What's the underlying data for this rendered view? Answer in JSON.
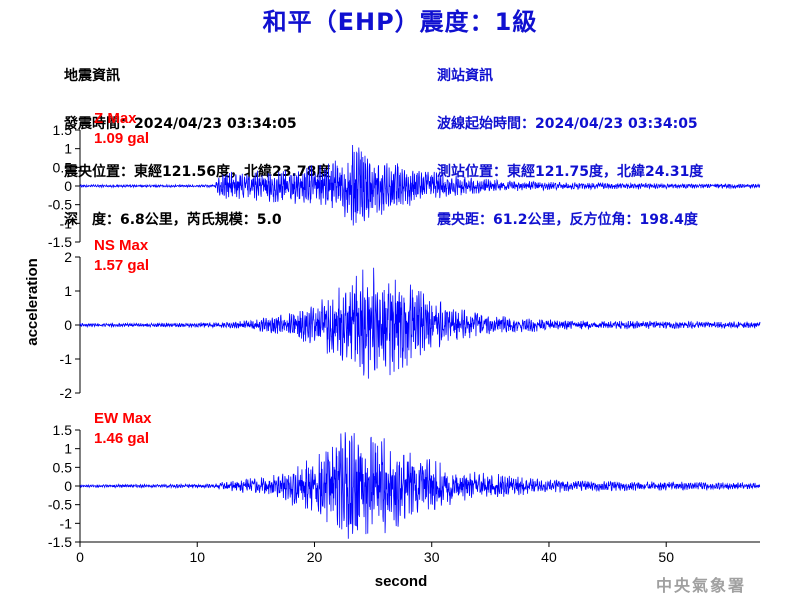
{
  "header": {
    "title": "和平（EHP）震度：1級"
  },
  "quake_info": {
    "heading": "地震資訊",
    "time": "發震時間：2024/04/23 03:34:05",
    "epicenter": "震央位置：東經121.56度，北緯23.78度",
    "depth": "深　度：6.8公里，芮氏規模：5.0"
  },
  "station_info": {
    "heading": "測站資訊",
    "wave_start": "波線起始時間：2024/04/23 03:34:05",
    "location": "測站位置：東經121.75度，北緯24.31度",
    "distance": "震央距：61.2公里，反方位角：198.4度"
  },
  "credit": "中央氣象署",
  "colors": {
    "trace": "#0000ff",
    "title": "#1010d0",
    "max_label": "#ff0000"
  },
  "chart_data": {
    "type": "line",
    "xlabel": "second",
    "ylabel": "acceleration",
    "xlim": [
      0,
      58
    ],
    "xticks": [
      0,
      10,
      20,
      30,
      40,
      50
    ],
    "panels": [
      {
        "component": "Z",
        "max_label": "Z Max",
        "max_value": "1.09 gal",
        "ylim": [
          -1.5,
          1.5
        ],
        "yticks": [
          1.5,
          1,
          0.5,
          0,
          -0.5,
          -1,
          -1.5
        ],
        "envelope": [
          {
            "t": 0,
            "amp": 0.03
          },
          {
            "t": 11.5,
            "amp": 0.03
          },
          {
            "t": 12,
            "amp": 0.35
          },
          {
            "t": 14,
            "amp": 0.35
          },
          {
            "t": 18,
            "amp": 0.4
          },
          {
            "t": 22,
            "amp": 0.6
          },
          {
            "t": 23.5,
            "amp": 1.09
          },
          {
            "t": 25,
            "amp": 0.7
          },
          {
            "t": 28,
            "amp": 0.55
          },
          {
            "t": 31,
            "amp": 0.3
          },
          {
            "t": 35,
            "amp": 0.15
          },
          {
            "t": 40,
            "amp": 0.09
          },
          {
            "t": 50,
            "amp": 0.06
          },
          {
            "t": 58,
            "amp": 0.05
          }
        ]
      },
      {
        "component": "NS",
        "max_label": "NS Max",
        "max_value": "1.57 gal",
        "ylim": [
          -2,
          2
        ],
        "yticks": [
          2,
          1,
          0,
          -1,
          -2
        ],
        "envelope": [
          {
            "t": 0,
            "amp": 0.04
          },
          {
            "t": 12,
            "amp": 0.06
          },
          {
            "t": 14,
            "amp": 0.12
          },
          {
            "t": 18,
            "amp": 0.3
          },
          {
            "t": 21,
            "amp": 0.7
          },
          {
            "t": 23,
            "amp": 1.2
          },
          {
            "t": 25.5,
            "amp": 1.57
          },
          {
            "t": 28,
            "amp": 1.1
          },
          {
            "t": 31,
            "amp": 0.55
          },
          {
            "t": 35,
            "amp": 0.25
          },
          {
            "t": 42,
            "amp": 0.12
          },
          {
            "t": 50,
            "amp": 0.1
          },
          {
            "t": 58,
            "amp": 0.08
          }
        ]
      },
      {
        "component": "EW",
        "max_label": "EW Max",
        "max_value": "1.46 gal",
        "ylim": [
          -1.5,
          1.5
        ],
        "yticks": [
          1.5,
          1,
          0.5,
          0,
          -0.5,
          -1,
          -1.5
        ],
        "envelope": [
          {
            "t": 0,
            "amp": 0.03
          },
          {
            "t": 11,
            "amp": 0.05
          },
          {
            "t": 13,
            "amp": 0.12
          },
          {
            "t": 17,
            "amp": 0.3
          },
          {
            "t": 20,
            "amp": 0.7
          },
          {
            "t": 23.3,
            "amp": 1.46
          },
          {
            "t": 26,
            "amp": 1.1
          },
          {
            "t": 29,
            "amp": 0.7
          },
          {
            "t": 33,
            "amp": 0.35
          },
          {
            "t": 40,
            "amp": 0.15
          },
          {
            "t": 50,
            "amp": 0.1
          },
          {
            "t": 58,
            "amp": 0.08
          }
        ]
      }
    ]
  }
}
